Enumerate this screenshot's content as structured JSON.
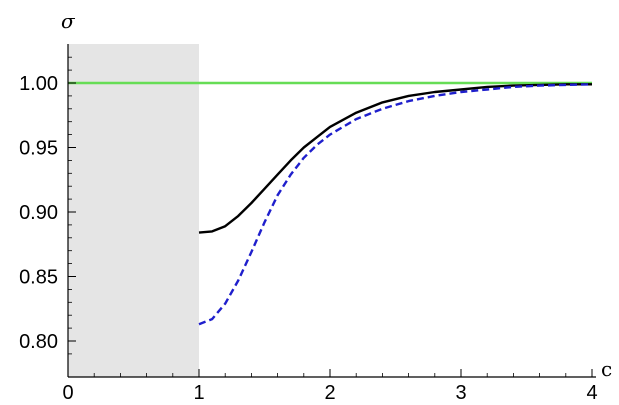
{
  "chart_data": {
    "type": "line",
    "xlabel": "c",
    "ylabel": "σ",
    "xlim": [
      0,
      4
    ],
    "ylim": [
      0.78,
      1.03
    ],
    "xticks": [
      0,
      1,
      2,
      3,
      4
    ],
    "xtick_labels": [
      "0",
      "1",
      "2",
      "3",
      "4"
    ],
    "yticks": [
      0.8,
      0.85,
      0.9,
      0.95,
      1.0
    ],
    "ytick_labels": [
      "0.80",
      "0.85",
      "0.90",
      "0.95",
      "1.00"
    ],
    "shaded_region": {
      "x": [
        0,
        1
      ],
      "color": "#e5e5e5"
    },
    "grid": false,
    "legend": "none",
    "series": [
      {
        "color": "#66dd55",
        "style": "solid",
        "x": [
          0,
          4
        ],
        "y": [
          1.0,
          1.0
        ]
      },
      {
        "color": "#000000",
        "style": "solid",
        "x": [
          1.0,
          1.1,
          1.2,
          1.3,
          1.4,
          1.5,
          1.6,
          1.7,
          1.8,
          1.9,
          2.0,
          2.2,
          2.4,
          2.6,
          2.8,
          3.0,
          3.2,
          3.4,
          3.6,
          3.8,
          4.0
        ],
        "y": [
          0.884,
          0.885,
          0.889,
          0.897,
          0.907,
          0.918,
          0.929,
          0.94,
          0.95,
          0.958,
          0.966,
          0.977,
          0.985,
          0.99,
          0.993,
          0.995,
          0.997,
          0.998,
          0.9985,
          0.999,
          0.999
        ]
      },
      {
        "color": "#1f1fcc",
        "style": "dashed",
        "x": [
          1.0,
          1.1,
          1.2,
          1.3,
          1.4,
          1.5,
          1.6,
          1.7,
          1.8,
          1.9,
          2.0,
          2.2,
          2.4,
          2.6,
          2.8,
          3.0,
          3.2,
          3.4,
          3.6,
          3.8,
          4.0
        ],
        "y": [
          0.813,
          0.817,
          0.829,
          0.847,
          0.869,
          0.892,
          0.913,
          0.929,
          0.942,
          0.952,
          0.96,
          0.972,
          0.98,
          0.986,
          0.99,
          0.993,
          0.995,
          0.997,
          0.998,
          0.9985,
          0.999
        ]
      }
    ]
  }
}
